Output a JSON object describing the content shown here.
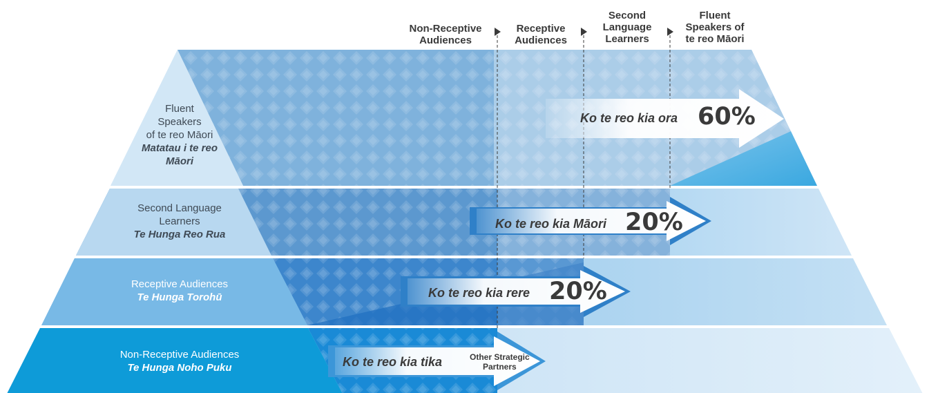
{
  "columns": [
    {
      "id": "non-receptive",
      "label_line1": "Non-Receptive",
      "label_line2": "Audiences",
      "label_line3": ""
    },
    {
      "id": "receptive",
      "label_line1": "Receptive",
      "label_line2": "Audiences",
      "label_line3": ""
    },
    {
      "id": "second-language",
      "label_line1": "Second",
      "label_line2": "Language",
      "label_line3": "Learners"
    },
    {
      "id": "fluent",
      "label_line1": "Fluent",
      "label_line2": "Speakers of",
      "label_line3": "te reo Māori"
    }
  ],
  "rows": {
    "fluent": {
      "en_line1": "Fluent",
      "en_line2": "Speakers",
      "en_line3": "of te reo Māori",
      "mi_line1": "Matatau i te reo",
      "mi_line2": "Māori"
    },
    "second_language": {
      "en_line1": "Second Language",
      "en_line2": "Learners",
      "mi": "Te Hunga Reo Rua"
    },
    "receptive": {
      "en": "Receptive Audiences",
      "mi": "Te Hunga Torohū"
    },
    "non_receptive": {
      "en": "Non-Receptive Audiences",
      "mi": "Te Hunga Noho Puku"
    }
  },
  "arrows": [
    {
      "id": "ora",
      "label": "Ko te reo kia ora",
      "value": "60%"
    },
    {
      "id": "maori",
      "label": "Ko te reo kia Māori",
      "value": "20%"
    },
    {
      "id": "rere",
      "label": "Ko te reo kia rere",
      "value": "20%"
    },
    {
      "id": "tika",
      "label": "Ko te reo kia tika",
      "partners_line1": "Other Strategic",
      "partners_line2": "Partners"
    }
  ],
  "colors": {
    "tier_fluent": "#d2e7f6",
    "tier_second": "#b8d8f0",
    "tier_receptive": "#78b9e6",
    "tier_non_receptive": "#0e9bd8",
    "accent": "#1a7ec8",
    "text": "#3a3a3a"
  },
  "icons": {
    "column_marker": "triangle-right-icon"
  }
}
